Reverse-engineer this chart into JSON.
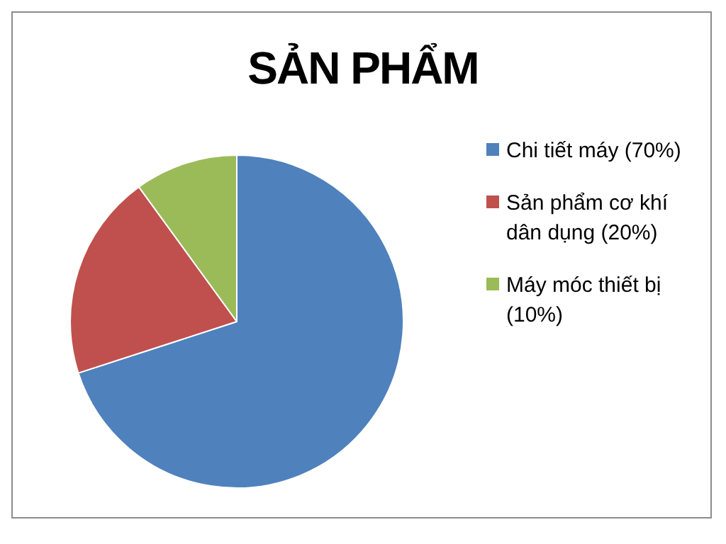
{
  "chart_data": {
    "type": "pie",
    "title": "SẢN PHẨM",
    "categories": [
      "Chi tiết máy (70%)",
      "Sản phẩm cơ khí dân dụng (20%)",
      "Máy móc thiết bị (10%)"
    ],
    "values": [
      70,
      20,
      10
    ],
    "colors": [
      "#4f81bd",
      "#c0504d",
      "#9bbb59"
    ],
    "legend": "right"
  }
}
